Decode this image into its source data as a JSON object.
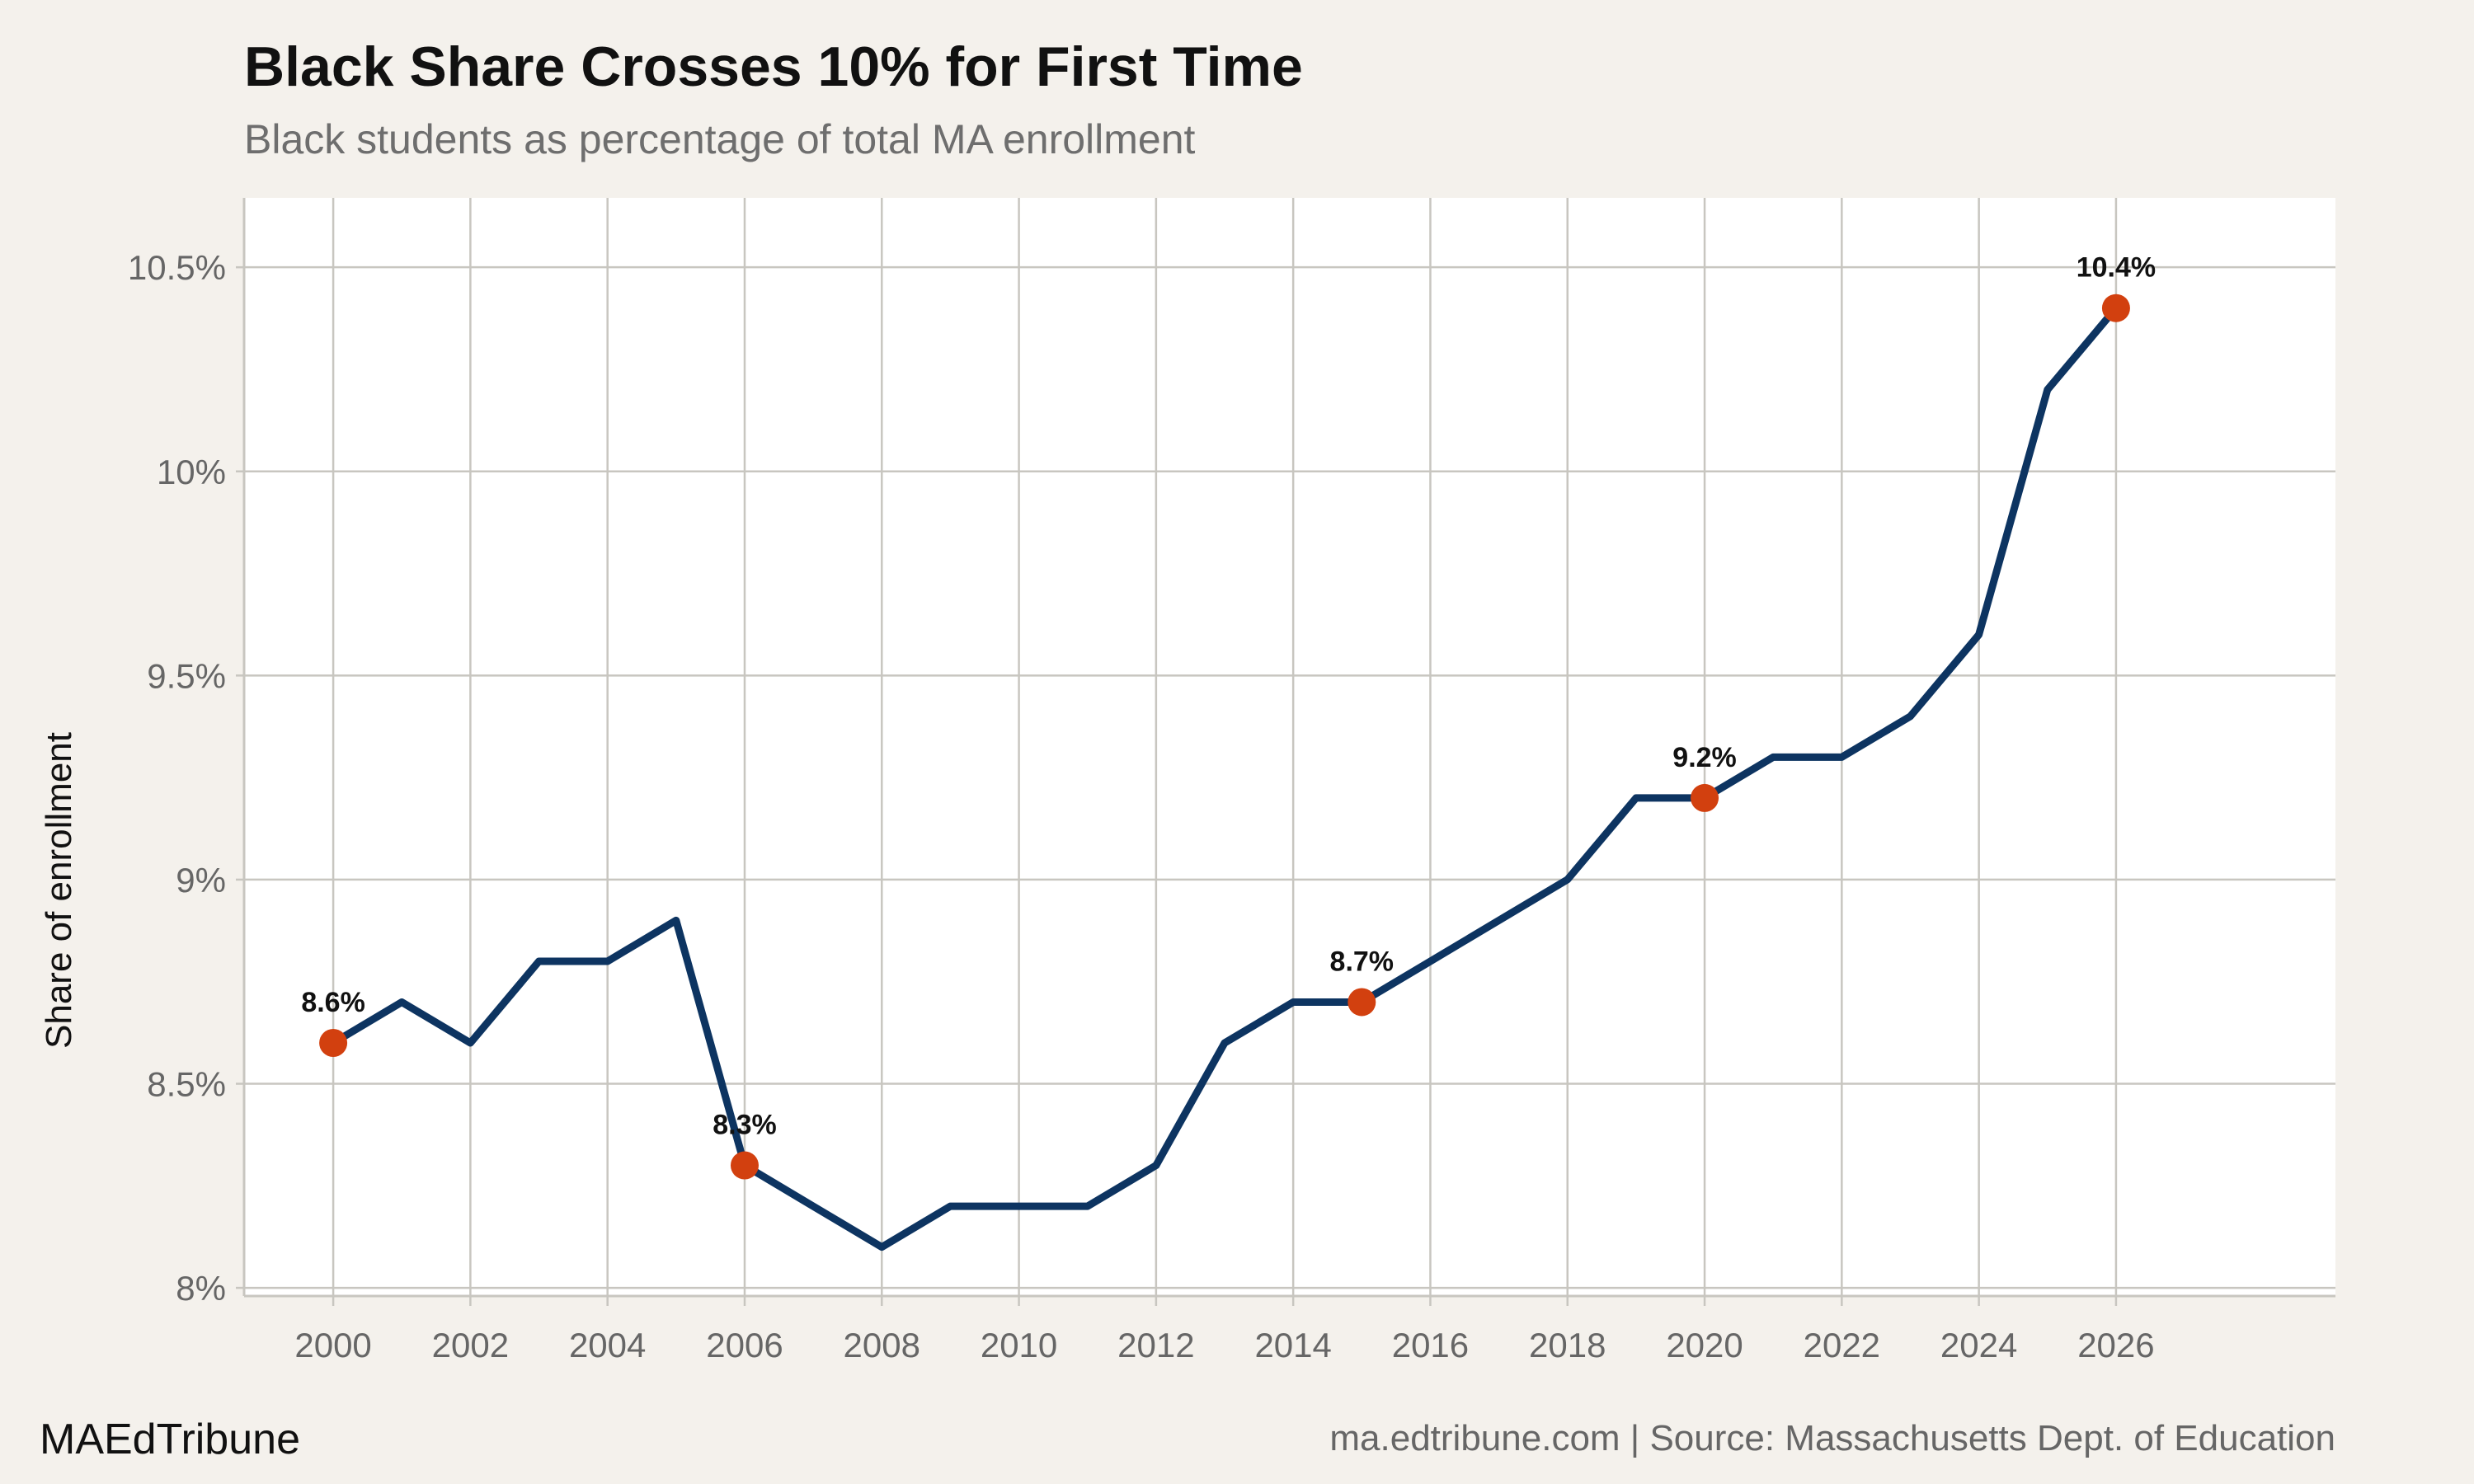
{
  "brand": "MAEdTribune",
  "footer_source": "ma.edtribune.com | Source: Massachusetts Dept. of Education",
  "chart_data": {
    "type": "line",
    "title": "Black Share Crosses 10% for First Time",
    "subtitle": "Black students as percentage of total MA enrollment",
    "xlabel": "",
    "ylabel": "Share of enrollment",
    "x": [
      2000,
      2001,
      2002,
      2003,
      2004,
      2005,
      2006,
      2007,
      2008,
      2009,
      2010,
      2011,
      2012,
      2013,
      2014,
      2015,
      2016,
      2017,
      2018,
      2019,
      2020,
      2021,
      2022,
      2023,
      2024,
      2025,
      2026
    ],
    "series": [
      {
        "name": "Black share",
        "values": [
          8.6,
          8.7,
          8.6,
          8.8,
          8.8,
          8.9,
          8.3,
          8.2,
          8.1,
          8.2,
          8.2,
          8.2,
          8.3,
          8.6,
          8.7,
          8.7,
          8.8,
          8.9,
          9.0,
          9.2,
          9.2,
          9.3,
          9.3,
          9.4,
          9.6,
          10.2,
          10.4
        ]
      }
    ],
    "highlights": [
      {
        "x": 2000,
        "y": 8.6,
        "label": "8.6%"
      },
      {
        "x": 2006,
        "y": 8.3,
        "label": "8.3%"
      },
      {
        "x": 2015,
        "y": 8.7,
        "label": "8.7%"
      },
      {
        "x": 2020,
        "y": 9.2,
        "label": "9.2%"
      },
      {
        "x": 2026,
        "y": 10.4,
        "label": "10.4%"
      }
    ],
    "x_ticks": [
      2000,
      2002,
      2004,
      2006,
      2008,
      2010,
      2012,
      2014,
      2016,
      2018,
      2020,
      2022,
      2024,
      2026
    ],
    "y_ticks": [
      8.0,
      8.5,
      9.0,
      9.5,
      10.0,
      10.5
    ],
    "y_tick_labels": [
      "8%",
      "8.5%",
      "9%",
      "9.5%",
      "10%",
      "10.5%"
    ],
    "xlim": [
      1998.7,
      2029.2
    ],
    "ylim": [
      7.98,
      10.67
    ],
    "grid": true,
    "colors": {
      "line": "#0d3461",
      "highlight": "#d2400f",
      "grid": "#c8c6c0",
      "panel": "#ffffff"
    }
  }
}
